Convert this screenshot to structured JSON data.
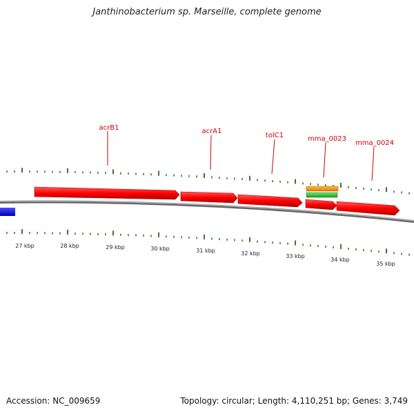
{
  "title": "Janthinobacterium sp. Marseille, complete genome",
  "footer": {
    "accession": "Accession: NC_009659",
    "stats": "Topology: circular; Length: 4,110,251 bp; Genes: 3,749"
  },
  "map": {
    "kbp_ticks": [
      "27 kbp",
      "28 kbp",
      "29 kbp",
      "30 kbp",
      "31 kbp",
      "32 kbp",
      "33 kbp",
      "34 kbp",
      "35 kbp"
    ],
    "gene_labels": [
      "acrB1",
      "acrA1",
      "tolC1",
      "mma_0023",
      "mma_0024"
    ],
    "colors": {
      "forward_gene": "#ff0000",
      "reverse_gene": "#0000ee",
      "feature_orange": "#ff9900",
      "feature_green": "#33cc33",
      "backbone": "#888888",
      "gc_tick": "#2e7d1e",
      "label": "#cc0000"
    }
  }
}
